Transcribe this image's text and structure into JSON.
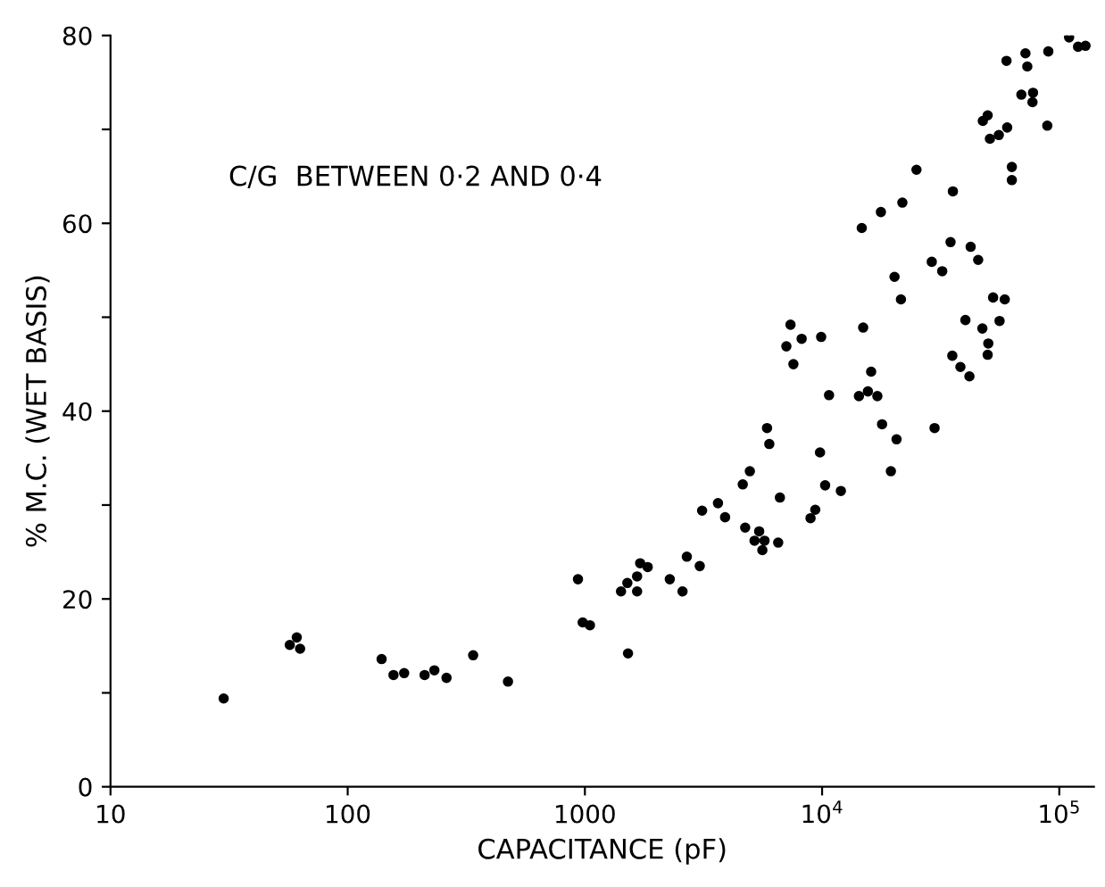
{
  "chart_data": {
    "type": "scatter",
    "xlabel": "CAPACITANCE (pF)",
    "ylabel": "% M.C. (WET BASIS)",
    "annotations": [
      "C/G  BETWEEN 0·2 AND 0·4"
    ],
    "log": "x",
    "marker": "circle",
    "grid": false,
    "legend": false,
    "xlim": [
      10,
      140000
    ],
    "ylim": [
      0,
      80
    ],
    "xticks": [
      10,
      100,
      1000,
      {
        "value": 10000,
        "label": "10$^{4}$"
      },
      {
        "value": 100000,
        "label": "10$^{5}$"
      }
    ],
    "yticks": [
      0,
      {
        "value": 10,
        "label": null
      },
      20,
      {
        "value": 30,
        "label": null
      },
      40,
      {
        "value": 50,
        "label": null
      },
      60,
      {
        "value": 70,
        "label": null
      },
      80
    ],
    "series": [
      {
        "color": "#000000",
        "x": [
          30,
          57,
          61,
          63,
          139,
          156,
          173,
          211,
          232,
          261,
          338,
          474,
          935,
          979,
          1050,
          1420,
          1510,
          1520,
          1660,
          1660,
          1710,
          1840,
          2280,
          2580,
          2690,
          3050,
          3120,
          3640,
          3900,
          4630,
          4740,
          4960,
          5190,
          5430,
          5720,
          5600,
          5860,
          5990,
          6530,
          6640,
          7360,
          7070,
          8200,
          7570,
          9910,
          9800,
          10300,
          9360,
          8940,
          12000,
          10700,
          14900,
          16100,
          14300,
          15600,
          17100,
          17900,
          20600,
          19500,
          29800,
          35400,
          38300,
          41800,
          50200,
          49900,
          110000,
          120000,
          129000,
          89900,
          72000,
          59900,
          73300,
          69200,
          77500,
          77100,
          47600,
          49900,
          60300,
          55600,
          51000,
          89000,
          25000,
          63100,
          63100,
          35600,
          21800,
          17700,
          14700,
          34800,
          42300,
          29000,
          32100,
          45500,
          20200,
          21500,
          52600,
          58900,
          40200,
          47400,
          56000
        ],
        "values": [
          9.4,
          15.1,
          15.9,
          14.7,
          13.6,
          11.9,
          12.1,
          11.9,
          12.4,
          11.6,
          14.0,
          11.2,
          22.1,
          17.5,
          17.2,
          20.8,
          21.7,
          14.2,
          22.4,
          20.8,
          23.8,
          23.4,
          22.1,
          20.8,
          24.5,
          23.5,
          29.4,
          30.2,
          28.7,
          32.2,
          27.6,
          33.6,
          26.2,
          27.2,
          26.2,
          25.2,
          38.2,
          36.5,
          26.0,
          30.8,
          49.2,
          46.9,
          47.7,
          45.0,
          47.9,
          35.6,
          32.1,
          29.5,
          28.6,
          31.5,
          41.7,
          48.9,
          44.2,
          41.6,
          42.1,
          41.6,
          38.6,
          37.0,
          33.6,
          38.2,
          45.9,
          44.7,
          43.7,
          47.2,
          46.0,
          79.8,
          78.8,
          78.9,
          78.3,
          78.1,
          77.3,
          76.7,
          73.7,
          73.9,
          72.9,
          70.9,
          71.5,
          70.2,
          69.4,
          69.0,
          70.4,
          65.7,
          66.0,
          64.6,
          63.4,
          62.2,
          61.2,
          59.5,
          58.0,
          57.5,
          55.9,
          54.9,
          56.1,
          54.3,
          51.9,
          52.1,
          51.9,
          49.7,
          48.8,
          49.6
        ]
      }
    ]
  }
}
